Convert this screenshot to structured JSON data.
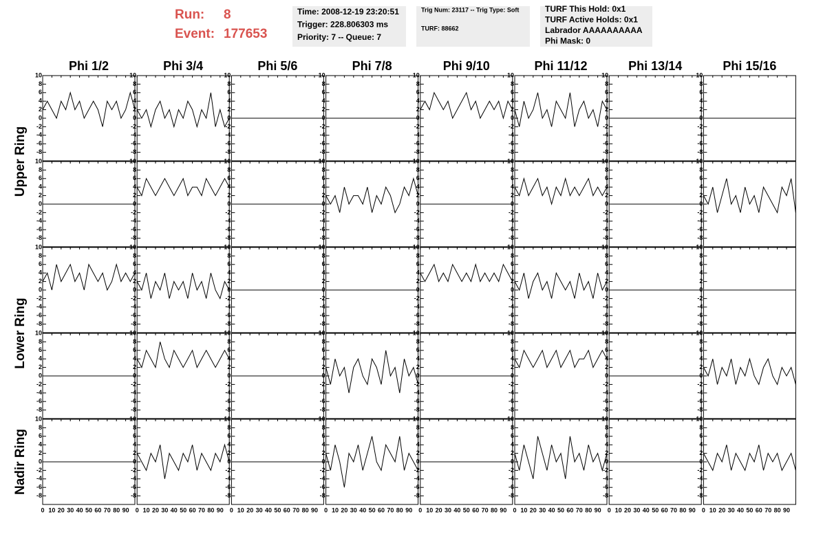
{
  "header": {
    "run_label": "Run:",
    "run": 8,
    "event_label": "Event:",
    "event": 177653,
    "box1": [
      "Time: 2008-12-19 23:20:51",
      "Trigger: 228.806303 ms",
      "Priority: 7 -- Queue: 7"
    ],
    "box2": [
      "Trig Num: 23117 -- Trig Type: Soft",
      "TURF: 88662"
    ],
    "box3": [
      "TURF This Hold: 0x1",
      "TURF Active Holds: 0x1",
      "Labrador AAAAAAAAAA",
      "Phi Mask: 0"
    ]
  },
  "chart_data": {
    "type": "line",
    "columns": [
      "Phi 1/2",
      "Phi 3/4",
      "Phi 5/6",
      "Phi 7/8",
      "Phi 9/10",
      "Phi 11/12",
      "Phi 13/14",
      "Phi 15/16"
    ],
    "rings": [
      "Upper Ring",
      "Lower Ring",
      "Nadir Ring"
    ],
    "xlim": [
      0,
      100
    ],
    "xticks": [
      0,
      10,
      20,
      30,
      40,
      50,
      60,
      70,
      80,
      90
    ],
    "ylim": [
      -10,
      10
    ],
    "yticks": [
      -8,
      -6,
      -4,
      -2,
      0,
      2,
      4,
      6,
      8,
      10
    ],
    "x": [
      0,
      5,
      10,
      15,
      20,
      25,
      30,
      35,
      40,
      45,
      50,
      55,
      60,
      65,
      70,
      75,
      80,
      85,
      90,
      95,
      100
    ],
    "panels": [
      [
        {
          "values": [
            2,
            4,
            2,
            0,
            4,
            2,
            6,
            2,
            4,
            0,
            2,
            4,
            2,
            -2,
            4,
            2,
            4,
            0,
            2,
            6,
            2
          ]
        },
        {
          "values": [
            2,
            0,
            2,
            -2,
            2,
            4,
            0,
            2,
            -2,
            2,
            0,
            4,
            2,
            -2,
            2,
            0,
            6,
            -2,
            2,
            -2,
            0
          ]
        },
        {
          "values": [
            0,
            0,
            0,
            0,
            0,
            0,
            0,
            0,
            0,
            0,
            0,
            0,
            0,
            0,
            0,
            0,
            0,
            0,
            0,
            0,
            0
          ]
        },
        {
          "values": [
            0,
            0,
            0,
            0,
            0,
            0,
            0,
            0,
            0,
            0,
            0,
            0,
            0,
            0,
            0,
            0,
            0,
            0,
            0,
            0,
            0
          ]
        },
        {
          "values": [
            2,
            4,
            2,
            6,
            4,
            2,
            4,
            0,
            2,
            4,
            6,
            2,
            4,
            0,
            2,
            4,
            2,
            4,
            0,
            4,
            2
          ]
        },
        {
          "values": [
            2,
            -2,
            4,
            0,
            2,
            6,
            0,
            2,
            -2,
            4,
            2,
            0,
            6,
            -2,
            2,
            4,
            0,
            2,
            -2,
            4,
            2
          ]
        },
        {
          "values": [
            0,
            0,
            0,
            0,
            0,
            0,
            0,
            0,
            0,
            0,
            0,
            0,
            0,
            0,
            0,
            0,
            0,
            0,
            0,
            0,
            0
          ]
        },
        {
          "values": [
            0,
            0,
            0,
            0,
            0,
            0,
            0,
            0,
            0,
            0,
            0,
            0,
            0,
            0,
            0,
            0,
            0,
            0,
            0,
            0,
            0
          ]
        }
      ],
      [
        {
          "values": [
            0,
            0,
            0,
            0,
            0,
            0,
            0,
            0,
            0,
            0,
            0,
            0,
            0,
            0,
            0,
            0,
            0,
            0,
            0,
            0,
            0
          ]
        },
        {
          "values": [
            4,
            2,
            6,
            4,
            2,
            4,
            6,
            4,
            2,
            4,
            6,
            2,
            4,
            4,
            2,
            6,
            4,
            2,
            4,
            6,
            4
          ]
        },
        {
          "values": [
            0,
            0,
            0,
            0,
            0,
            0,
            0,
            0,
            0,
            0,
            0,
            0,
            0,
            0,
            0,
            0,
            0,
            0,
            0,
            0,
            0
          ]
        },
        {
          "values": [
            2,
            0,
            2,
            -2,
            4,
            0,
            2,
            2,
            0,
            4,
            -2,
            2,
            0,
            4,
            2,
            -2,
            0,
            4,
            2,
            6,
            2
          ]
        },
        {
          "values": [
            0,
            0,
            0,
            0,
            0,
            0,
            0,
            0,
            0,
            0,
            0,
            0,
            0,
            0,
            0,
            0,
            0,
            0,
            0,
            0,
            0
          ]
        },
        {
          "values": [
            4,
            2,
            6,
            2,
            4,
            6,
            2,
            4,
            0,
            4,
            2,
            6,
            2,
            4,
            2,
            4,
            6,
            2,
            4,
            2,
            4
          ]
        },
        {
          "values": [
            0,
            0,
            0,
            0,
            0,
            0,
            0,
            0,
            0,
            0,
            0,
            0,
            0,
            0,
            0,
            0,
            0,
            0,
            0,
            0,
            0
          ]
        },
        {
          "values": [
            2,
            0,
            4,
            -2,
            2,
            6,
            0,
            2,
            -2,
            4,
            0,
            2,
            -2,
            4,
            2,
            0,
            -2,
            4,
            2,
            6,
            -2
          ]
        }
      ],
      [
        {
          "values": [
            2,
            4,
            0,
            6,
            2,
            4,
            6,
            2,
            4,
            0,
            6,
            4,
            2,
            4,
            0,
            2,
            6,
            2,
            4,
            2,
            4
          ]
        },
        {
          "values": [
            2,
            0,
            4,
            -2,
            2,
            0,
            4,
            -2,
            2,
            0,
            2,
            -2,
            4,
            0,
            2,
            -2,
            4,
            0,
            -2,
            2,
            0
          ]
        },
        {
          "values": [
            0,
            0,
            0,
            0,
            0,
            0,
            0,
            0,
            0,
            0,
            0,
            0,
            0,
            0,
            0,
            0,
            0,
            0,
            0,
            0,
            0
          ]
        },
        {
          "values": [
            0,
            0,
            0,
            0,
            0,
            0,
            0,
            0,
            0,
            0,
            0,
            0,
            0,
            0,
            0,
            0,
            0,
            0,
            0,
            0,
            0
          ]
        },
        {
          "values": [
            4,
            2,
            4,
            6,
            2,
            4,
            2,
            6,
            4,
            2,
            4,
            2,
            6,
            2,
            4,
            2,
            4,
            2,
            6,
            4,
            2
          ]
        },
        {
          "values": [
            2,
            0,
            4,
            -2,
            2,
            4,
            0,
            2,
            -2,
            4,
            2,
            0,
            2,
            -2,
            4,
            0,
            2,
            -2,
            4,
            0,
            2
          ]
        },
        {
          "values": [
            0,
            0,
            0,
            0,
            0,
            0,
            0,
            0,
            0,
            0,
            0,
            0,
            0,
            0,
            0,
            0,
            0,
            0,
            0,
            0,
            0
          ]
        },
        {
          "values": [
            0,
            0,
            0,
            0,
            0,
            0,
            0,
            0,
            0,
            0,
            0,
            0,
            0,
            0,
            0,
            0,
            0,
            0,
            0,
            0,
            0
          ]
        }
      ],
      [
        {
          "values": [
            0,
            0,
            0,
            0,
            0,
            0,
            0,
            0,
            0,
            0,
            0,
            0,
            0,
            0,
            0,
            0,
            0,
            0,
            0,
            0,
            0
          ]
        },
        {
          "values": [
            4,
            2,
            6,
            4,
            2,
            8,
            4,
            2,
            6,
            4,
            2,
            4,
            6,
            2,
            4,
            6,
            4,
            2,
            4,
            6,
            4
          ]
        },
        {
          "values": [
            0,
            0,
            0,
            0,
            0,
            0,
            0,
            0,
            0,
            0,
            0,
            0,
            0,
            0,
            0,
            0,
            0,
            0,
            0,
            0,
            0
          ]
        },
        {
          "values": [
            2,
            -2,
            4,
            0,
            2,
            -4,
            2,
            4,
            0,
            -2,
            4,
            2,
            -2,
            6,
            0,
            2,
            -4,
            4,
            0,
            2,
            -2
          ]
        },
        {
          "values": [
            0,
            0,
            0,
            0,
            0,
            0,
            0,
            0,
            0,
            0,
            0,
            0,
            0,
            0,
            0,
            0,
            0,
            0,
            0,
            0,
            0
          ]
        },
        {
          "values": [
            4,
            2,
            6,
            4,
            2,
            4,
            6,
            2,
            4,
            6,
            2,
            4,
            6,
            2,
            4,
            4,
            6,
            2,
            4,
            6,
            4
          ]
        },
        {
          "values": [
            0,
            0,
            0,
            0,
            0,
            0,
            0,
            0,
            0,
            0,
            0,
            0,
            0,
            0,
            0,
            0,
            0,
            0,
            0,
            0,
            0
          ]
        },
        {
          "values": [
            2,
            0,
            4,
            -2,
            2,
            0,
            4,
            -2,
            2,
            0,
            4,
            0,
            -2,
            2,
            4,
            0,
            -2,
            2,
            0,
            2,
            -2
          ]
        }
      ],
      [
        {
          "values": [
            0,
            0,
            0,
            0,
            0,
            0,
            0,
            0,
            0,
            0,
            0,
            0,
            0,
            0,
            0,
            0,
            0,
            0,
            0,
            0,
            0
          ]
        },
        {
          "values": [
            2,
            0,
            -2,
            2,
            0,
            4,
            -4,
            2,
            0,
            -2,
            2,
            0,
            4,
            -2,
            2,
            0,
            -2,
            2,
            0,
            4,
            0
          ]
        },
        {
          "values": [
            0,
            0,
            0,
            0,
            0,
            0,
            0,
            0,
            0,
            0,
            0,
            0,
            0,
            0,
            0,
            0,
            0,
            0,
            0,
            0,
            0
          ]
        },
        {
          "values": [
            2,
            -2,
            4,
            0,
            -6,
            2,
            0,
            4,
            -2,
            2,
            6,
            0,
            -2,
            4,
            2,
            0,
            6,
            -2,
            2,
            0,
            -2
          ]
        },
        {
          "values": [
            0,
            0,
            0,
            0,
            0,
            0,
            0,
            0,
            0,
            0,
            0,
            0,
            0,
            0,
            0,
            0,
            0,
            0,
            0,
            0,
            0
          ]
        },
        {
          "values": [
            2,
            -2,
            4,
            0,
            -4,
            6,
            2,
            -2,
            4,
            0,
            2,
            -4,
            6,
            0,
            2,
            -2,
            4,
            0,
            2,
            -2,
            2
          ]
        },
        {
          "values": [
            0,
            0,
            0,
            0,
            0,
            0,
            0,
            0,
            0,
            0,
            0,
            0,
            0,
            0,
            0,
            0,
            0,
            0,
            0,
            0,
            0
          ]
        },
        {
          "values": [
            2,
            0,
            -2,
            2,
            0,
            4,
            -2,
            2,
            0,
            -2,
            2,
            0,
            4,
            -2,
            2,
            0,
            2,
            -2,
            0,
            2,
            -2
          ]
        }
      ]
    ]
  }
}
